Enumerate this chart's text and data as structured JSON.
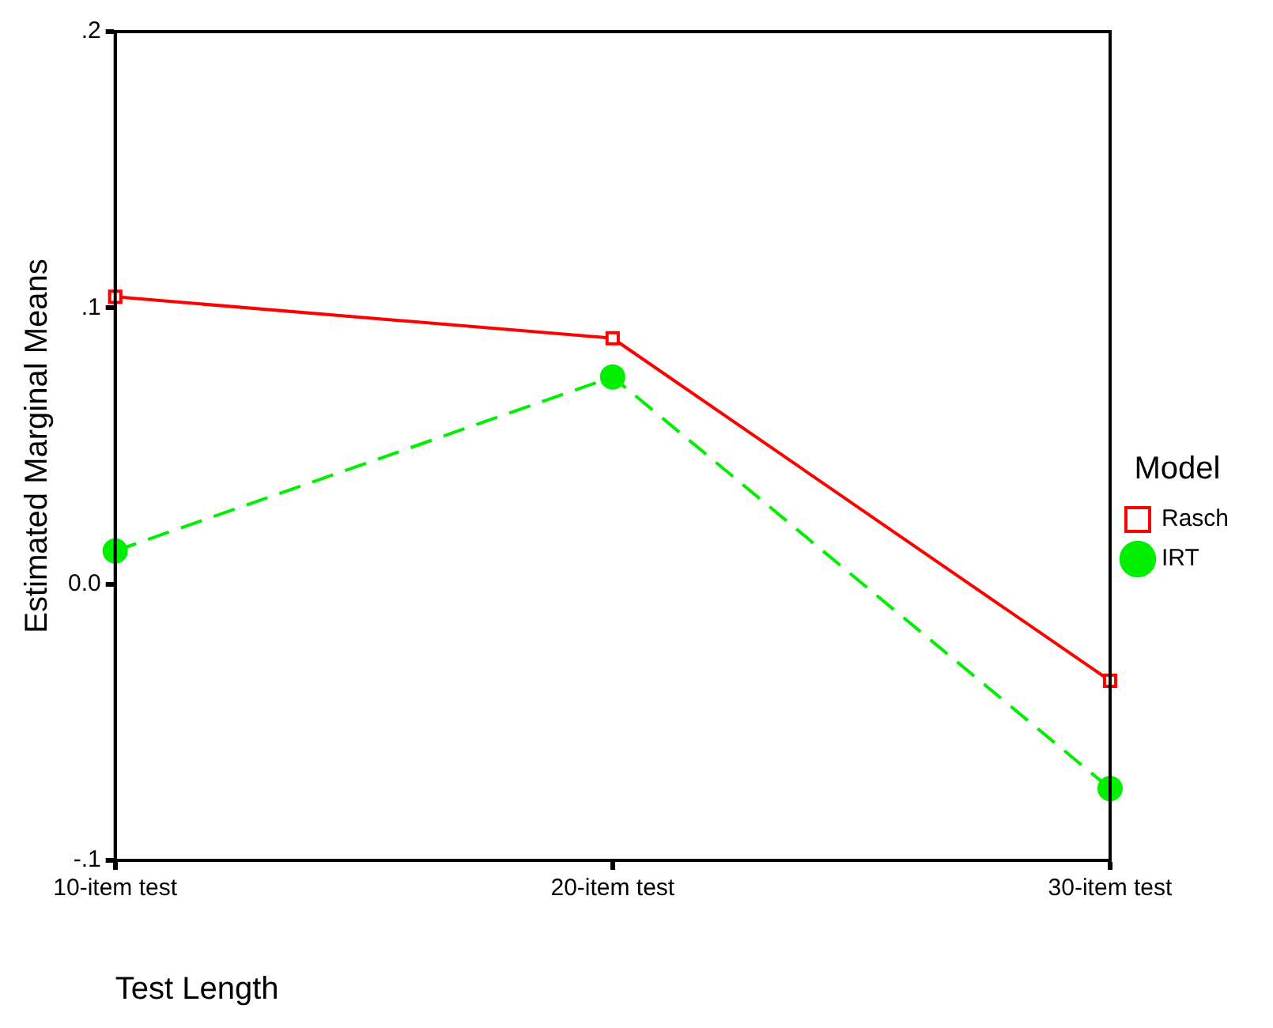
{
  "chart_data": {
    "type": "line",
    "xlabel": "Test Length",
    "ylabel": "Estimated Marginal Means",
    "legend_title": "Model",
    "categories": [
      "10-item test",
      "20-item test",
      "30-item test"
    ],
    "series": [
      {
        "name": "Rasch",
        "color": "#ff0000",
        "values": [
          0.104,
          0.089,
          -0.035
        ],
        "marker": "square",
        "line_style": "solid"
      },
      {
        "name": "IRT",
        "color": "#00ee00",
        "values": [
          0.012,
          0.075,
          -0.074
        ],
        "marker": "circle",
        "line_style": "dashed"
      }
    ],
    "ylim": [
      -0.1,
      0.2
    ],
    "yticks": [
      {
        "value": -0.1,
        "label": "-.1"
      },
      {
        "value": 0,
        "label": "0.0"
      },
      {
        "value": 0.1,
        "label": ".1"
      },
      {
        "value": 0.2,
        "label": ".2"
      }
    ],
    "grid": false,
    "legend": "right"
  }
}
